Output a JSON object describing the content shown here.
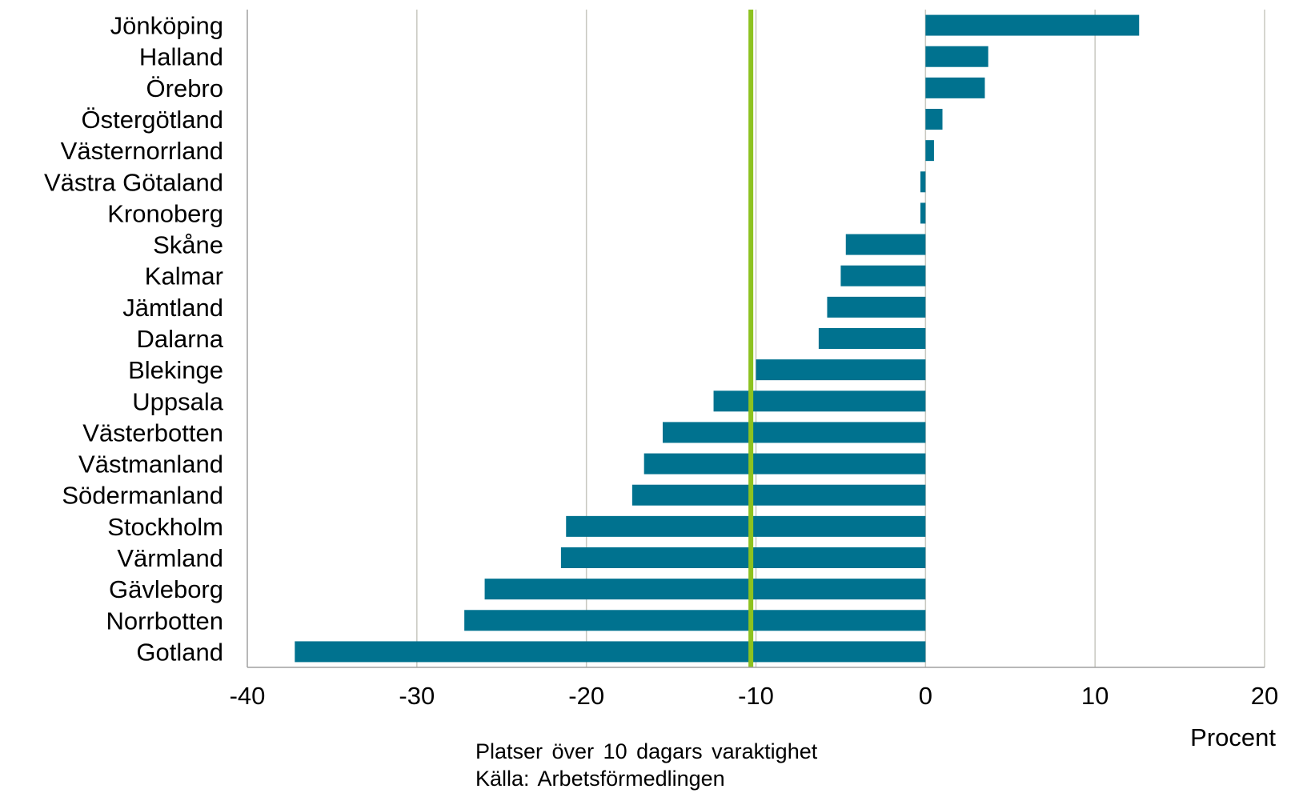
{
  "chart_data": {
    "type": "bar",
    "orientation": "horizontal",
    "categories": [
      "Jönköping",
      "Halland",
      "Örebro",
      "Östergötland",
      "Västernorrland",
      "Västra Götaland",
      "Kronoberg",
      "Skåne",
      "Kalmar",
      "Jämtland",
      "Dalarna",
      "Blekinge",
      "Uppsala",
      "Västerbotten",
      "Västmanland",
      "Södermanland",
      "Stockholm",
      "Värmland",
      "Gävleborg",
      "Norrbotten",
      "Gotland"
    ],
    "values": [
      12.6,
      3.7,
      3.5,
      1.0,
      0.5,
      -0.3,
      -0.3,
      -4.7,
      -5.0,
      -5.8,
      -6.3,
      -10.0,
      -12.5,
      -15.5,
      -16.6,
      -17.3,
      -21.2,
      -21.5,
      -26.0,
      -27.2,
      -37.2
    ],
    "reference_line": {
      "value": -10.3,
      "color": "#8dc21f"
    },
    "xlim": [
      -40,
      20
    ],
    "xticks": [
      -40,
      -30,
      -20,
      -10,
      0,
      10,
      20
    ],
    "xlabel": "Procent",
    "grid": true,
    "bar_color": "#00728f",
    "grid_color": "#c8c8c0"
  },
  "notes": {
    "line1": "Platser över 10 dagars varaktighet",
    "line2": "Källa: Arbetsförmedlingen"
  }
}
